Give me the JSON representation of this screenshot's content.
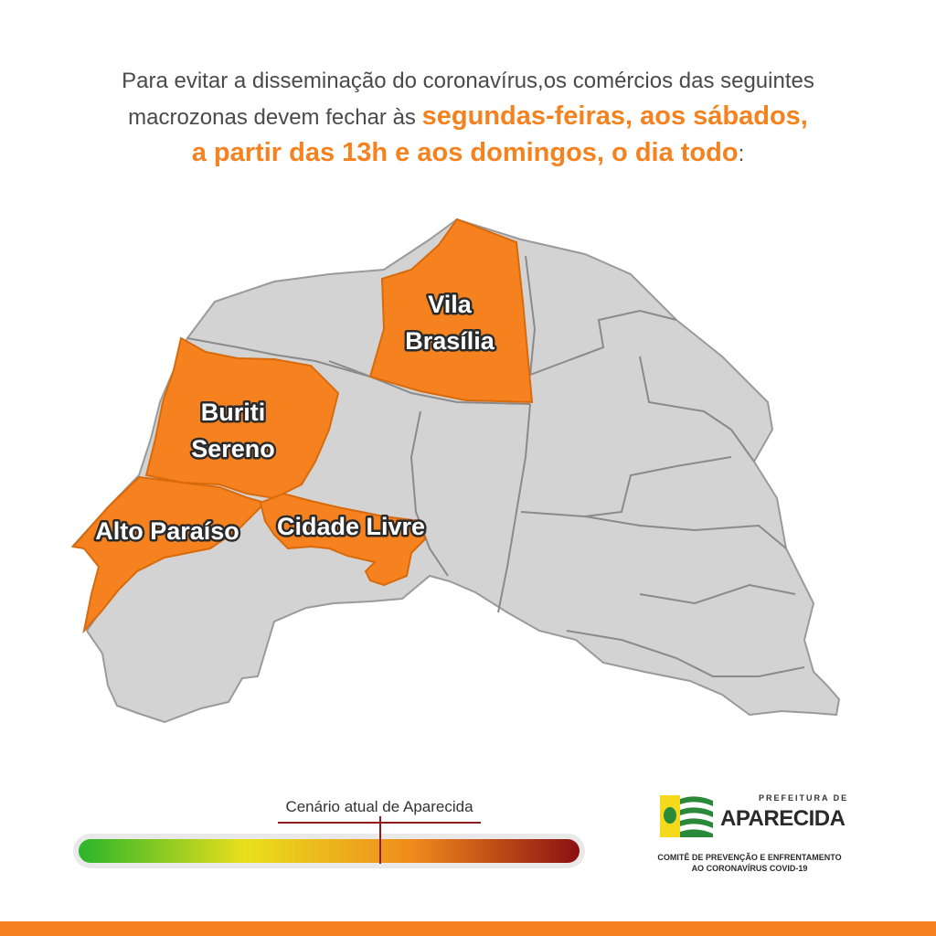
{
  "headline": {
    "line1": "Para evitar a disseminação do coronavírus,os comércios das seguintes",
    "line2_prefix": "macrozonas devem fechar às ",
    "line2_highlight": "segundas-feiras, aos sábados,",
    "line3_highlight": "a partir das 13h e aos domingos, o dia todo",
    "line3_suffix": ":"
  },
  "map": {
    "highlight_color": "#f5821f",
    "base_color": "#d3d3d3",
    "highlighted_zones": [
      "Vila Brasília",
      "Buriti Sereno",
      "Alto Paraíso",
      "Cidade Livre"
    ],
    "labels": {
      "vila_line1": "Vila",
      "vila_line2": "Brasília",
      "buriti_line1": "Buriti",
      "buriti_line2": "Sereno",
      "alto": "Alto Paraíso",
      "cidade": "Cidade Livre"
    }
  },
  "scale": {
    "title": "Cenário atual de Aparecida",
    "gradient_colors": [
      "#2ab52a",
      "#e8e01c",
      "#f08a1c",
      "#8b0f12"
    ],
    "current_level_fraction": 0.6
  },
  "logo": {
    "small_text": "PREFEITURA DE",
    "big_text": "APARECIDA",
    "committee_line1": "COMITÊ DE PREVENÇÃO E ENFRENTAMENTO",
    "committee_line2": "AO CORONAVÍRUS COVID-19"
  },
  "footer": {
    "color": "#f5821f"
  }
}
